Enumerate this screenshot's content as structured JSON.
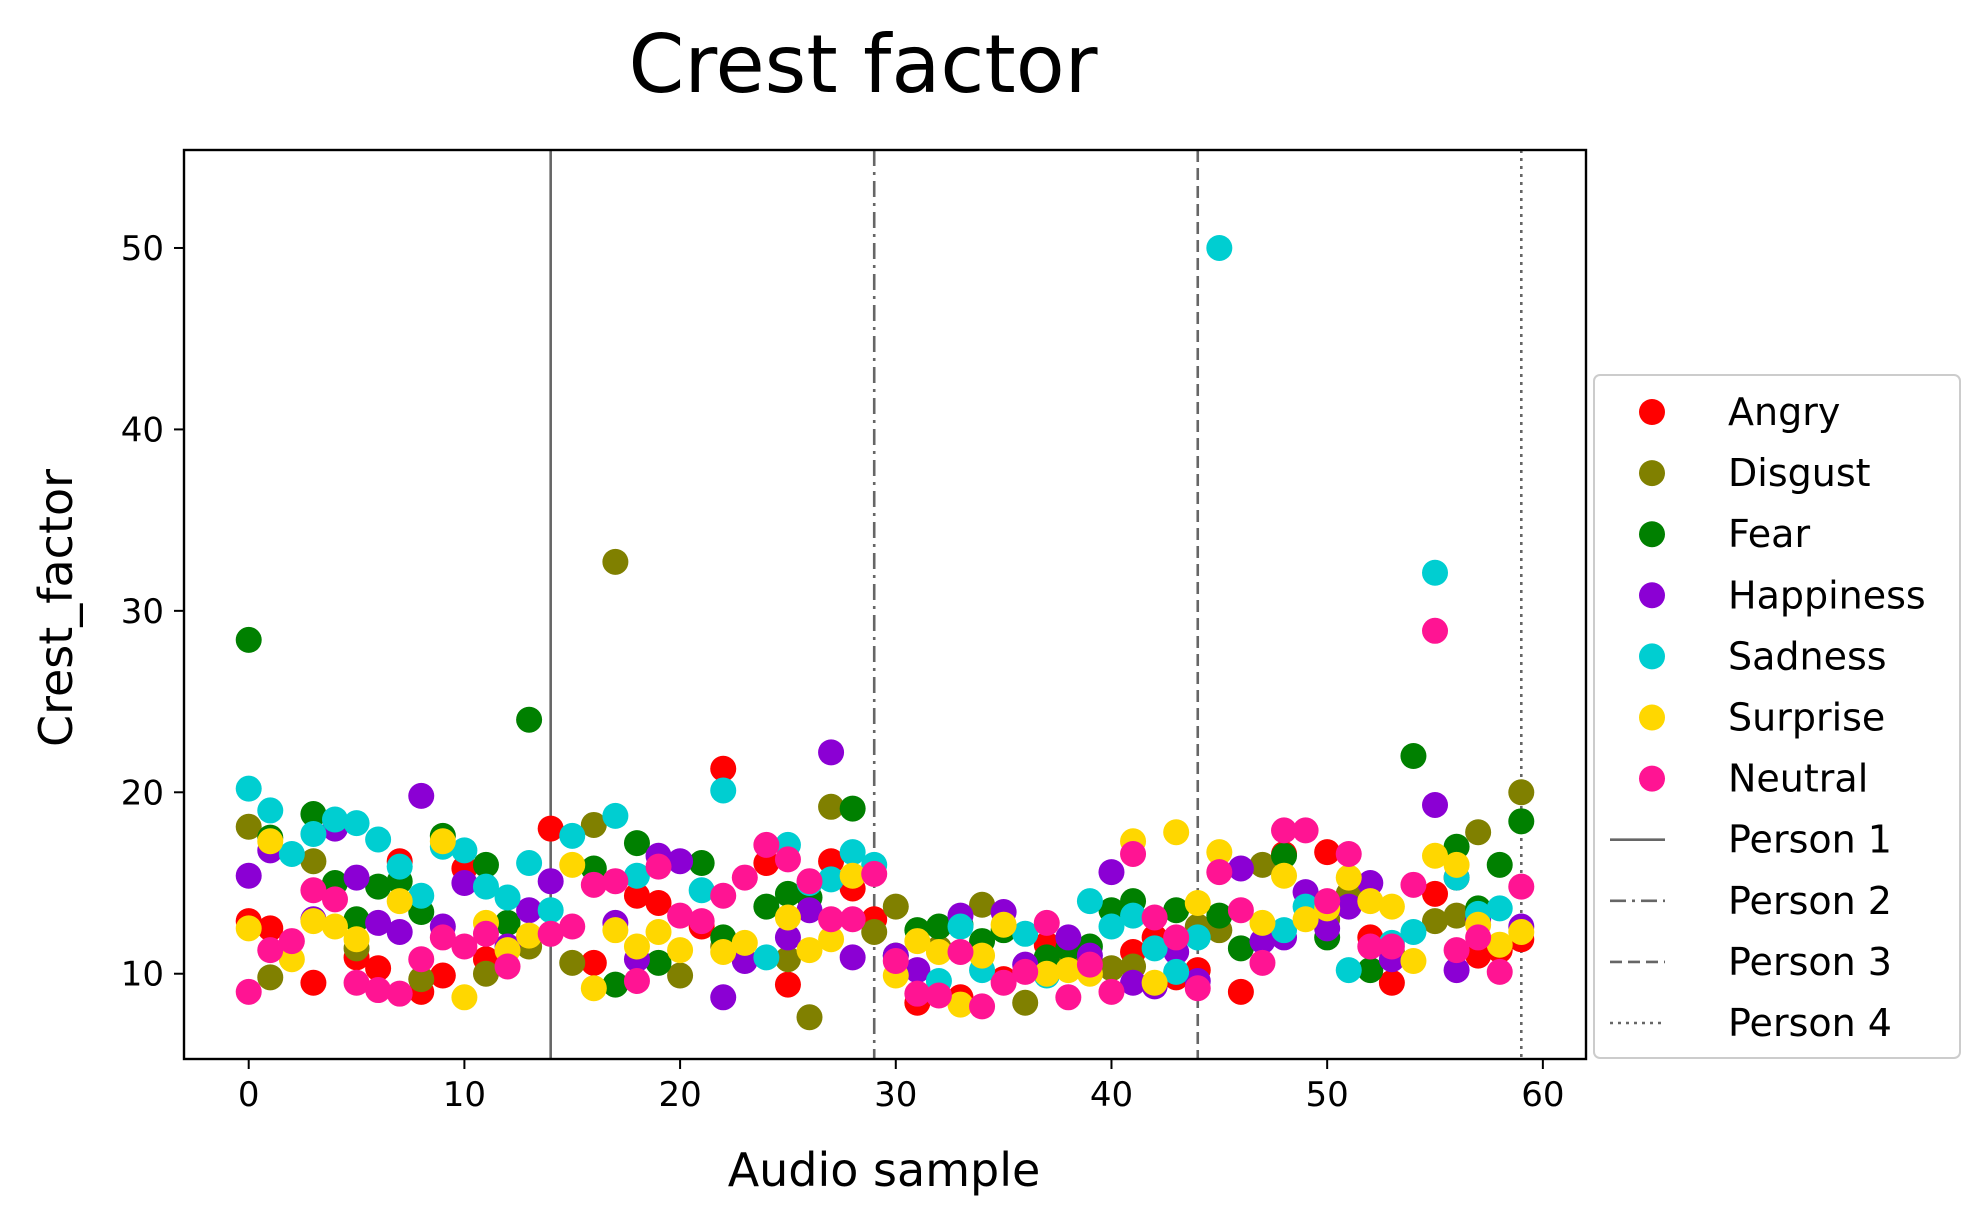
{
  "chart_data": {
    "type": "scatter",
    "title": "Crest factor",
    "xlabel": "Audio sample",
    "ylabel": "Crest_factor",
    "xlim": [
      -3,
      62
    ],
    "ylim": [
      5.3,
      55.4
    ],
    "xticks": [
      0,
      10,
      20,
      30,
      40,
      50,
      60
    ],
    "yticks": [
      10,
      20,
      30,
      40,
      50
    ],
    "grid": false,
    "legend_position": "outside-right",
    "series": [
      {
        "name": "Angry",
        "color": "#ff0000",
        "x": [
          0,
          1,
          3,
          5,
          6,
          7,
          8,
          9,
          10,
          11,
          13,
          14,
          16,
          18,
          19,
          21,
          22,
          24,
          25,
          27,
          28,
          29,
          31,
          33,
          35,
          37,
          39,
          41,
          42,
          43,
          44,
          46,
          48,
          50,
          52,
          53,
          55,
          56,
          57,
          58,
          59
        ],
        "y": [
          12.9,
          12.5,
          9.5,
          10.9,
          10.3,
          16.2,
          9.0,
          9.9,
          15.8,
          10.8,
          12.0,
          18.0,
          10.6,
          14.3,
          13.9,
          12.6,
          21.3,
          16.1,
          9.4,
          16.2,
          14.7,
          13.0,
          8.4,
          8.7,
          9.7,
          11.6,
          10.7,
          11.2,
          12.0,
          9.8,
          10.2,
          9.0,
          16.6,
          16.7,
          12.0,
          9.5,
          14.4,
          15.3,
          11.0,
          11.3,
          11.9
        ]
      },
      {
        "name": "Disgust",
        "color": "#808000",
        "x": [
          0,
          1,
          3,
          5,
          8,
          11,
          13,
          15,
          16,
          17,
          20,
          22,
          25,
          26,
          27,
          29,
          30,
          32,
          34,
          36,
          38,
          40,
          41,
          44,
          45,
          47,
          50,
          51,
          53,
          55,
          56,
          57,
          59
        ],
        "y": [
          18.1,
          9.8,
          16.2,
          11.4,
          9.7,
          10.0,
          11.5,
          10.6,
          18.2,
          32.7,
          9.9,
          11.5,
          10.8,
          7.6,
          19.2,
          12.3,
          13.7,
          11.4,
          13.8,
          8.4,
          10.9,
          10.3,
          10.4,
          12.6,
          12.4,
          16.0,
          13.0,
          14.4,
          11.2,
          12.9,
          13.2,
          17.8,
          20.0
        ]
      },
      {
        "name": "Fear",
        "color": "#008000",
        "x": [
          0,
          1,
          3,
          4,
          5,
          6,
          7,
          8,
          9,
          11,
          12,
          13,
          16,
          17,
          18,
          19,
          21,
          22,
          24,
          25,
          26,
          28,
          30,
          31,
          32,
          33,
          34,
          35,
          37,
          38,
          39,
          40,
          41,
          43,
          45,
          46,
          48,
          50,
          52,
          54,
          56,
          57,
          58,
          59
        ],
        "y": [
          28.4,
          17.5,
          18.8,
          15.0,
          13.0,
          14.8,
          15.1,
          13.4,
          17.6,
          16.0,
          12.8,
          24.0,
          15.8,
          9.4,
          17.2,
          10.6,
          16.1,
          12.0,
          13.7,
          14.4,
          14.2,
          19.1,
          11.0,
          12.4,
          12.6,
          12.7,
          11.8,
          12.4,
          10.9,
          11.4,
          11.5,
          13.5,
          14.0,
          13.5,
          13.2,
          11.4,
          16.5,
          12.0,
          10.2,
          22.0,
          17.0,
          13.6,
          16.0,
          18.4
        ]
      },
      {
        "name": "Happiness",
        "color": "#8b00d4",
        "x": [
          0,
          1,
          3,
          4,
          5,
          6,
          7,
          8,
          9,
          10,
          12,
          13,
          14,
          17,
          18,
          19,
          20,
          22,
          23,
          25,
          26,
          27,
          28,
          30,
          31,
          33,
          35,
          36,
          38,
          39,
          40,
          41,
          42,
          43,
          44,
          46,
          47,
          48,
          49,
          50,
          51,
          52,
          53,
          55,
          56,
          57,
          59
        ],
        "y": [
          15.4,
          16.8,
          13.0,
          18.0,
          15.3,
          12.8,
          12.3,
          19.8,
          12.6,
          15.0,
          11.5,
          13.5,
          15.1,
          12.8,
          10.8,
          16.5,
          16.2,
          8.7,
          10.7,
          12.0,
          13.5,
          22.2,
          10.9,
          11.0,
          10.2,
          13.2,
          13.4,
          10.5,
          12.0,
          11.0,
          15.6,
          9.5,
          9.3,
          11.2,
          9.6,
          15.8,
          11.8,
          12.0,
          14.5,
          12.5,
          13.7,
          15.0,
          10.8,
          19.3,
          10.2,
          13.0,
          12.6
        ]
      },
      {
        "name": "Sadness",
        "color": "#00ced1",
        "x": [
          0,
          1,
          2,
          3,
          4,
          5,
          6,
          7,
          8,
          9,
          10,
          11,
          12,
          13,
          14,
          15,
          17,
          18,
          21,
          22,
          24,
          25,
          26,
          27,
          28,
          29,
          32,
          33,
          34,
          36,
          37,
          39,
          40,
          41,
          42,
          43,
          44,
          45,
          48,
          49,
          51,
          53,
          54,
          55,
          56,
          57,
          58
        ],
        "y": [
          20.2,
          19.0,
          16.6,
          17.7,
          18.5,
          18.3,
          17.4,
          15.9,
          14.3,
          17.0,
          16.8,
          14.8,
          14.2,
          16.1,
          13.5,
          17.6,
          18.7,
          15.4,
          14.6,
          20.1,
          10.9,
          17.1,
          15.0,
          15.2,
          16.7,
          16.0,
          9.6,
          12.6,
          10.2,
          12.2,
          9.9,
          14.0,
          12.6,
          13.2,
          11.4,
          10.1,
          12.0,
          50.0,
          12.4,
          13.7,
          10.2,
          11.7,
          12.3,
          32.1,
          15.3,
          13.3,
          13.6
        ]
      },
      {
        "name": "Surprise",
        "color": "#ffd700",
        "x": [
          0,
          1,
          2,
          3,
          4,
          5,
          7,
          9,
          10,
          11,
          12,
          13,
          15,
          16,
          17,
          18,
          19,
          20,
          22,
          23,
          25,
          26,
          27,
          28,
          30,
          31,
          32,
          33,
          34,
          35,
          37,
          38,
          39,
          41,
          42,
          43,
          44,
          45,
          47,
          48,
          49,
          50,
          51,
          52,
          53,
          54,
          55,
          56,
          57,
          58,
          59
        ],
        "y": [
          12.5,
          17.3,
          10.8,
          12.9,
          12.6,
          11.9,
          14.0,
          17.3,
          8.7,
          12.8,
          11.3,
          12.1,
          16.0,
          9.2,
          12.4,
          11.5,
          12.3,
          11.3,
          11.2,
          11.7,
          13.1,
          11.3,
          11.9,
          15.4,
          9.9,
          11.8,
          11.2,
          8.3,
          11.0,
          12.7,
          10.0,
          10.2,
          10.0,
          17.3,
          9.5,
          17.8,
          13.9,
          16.7,
          12.8,
          15.4,
          13.0,
          13.6,
          15.3,
          14.0,
          13.7,
          10.7,
          16.5,
          16.0,
          12.7,
          11.6,
          12.3
        ]
      },
      {
        "name": "Neutral",
        "color": "#ff1493",
        "x": [
          0,
          1,
          2,
          3,
          4,
          5,
          6,
          7,
          8,
          9,
          10,
          11,
          12,
          14,
          15,
          16,
          17,
          18,
          19,
          20,
          21,
          22,
          23,
          24,
          25,
          26,
          27,
          28,
          29,
          30,
          31,
          32,
          33,
          34,
          35,
          36,
          37,
          38,
          39,
          40,
          41,
          42,
          43,
          44,
          45,
          46,
          47,
          48,
          49,
          50,
          51,
          52,
          53,
          54,
          55,
          56,
          57,
          58,
          59
        ],
        "y": [
          9.0,
          11.3,
          11.8,
          14.6,
          14.1,
          9.5,
          9.1,
          8.9,
          10.8,
          12.0,
          11.5,
          12.2,
          10.4,
          12.2,
          12.6,
          14.9,
          15.1,
          9.6,
          15.9,
          13.2,
          12.9,
          14.3,
          15.3,
          17.1,
          16.3,
          15.1,
          13.0,
          13.0,
          15.5,
          10.7,
          8.9,
          8.8,
          11.2,
          8.2,
          9.5,
          10.1,
          12.8,
          8.7,
          10.5,
          9.0,
          16.6,
          13.1,
          12.0,
          9.2,
          15.6,
          13.5,
          10.6,
          17.9,
          17.9,
          14.0,
          16.6,
          11.5,
          11.5,
          14.9,
          28.9,
          11.3,
          12.0,
          10.1,
          14.8
        ]
      },
      {
        "name": "Person 1",
        "type": "vline",
        "x": 14,
        "dash": "solid"
      },
      {
        "name": "Person 2",
        "type": "vline",
        "x": 29,
        "dash": "dashdot"
      },
      {
        "name": "Person 3",
        "type": "vline",
        "x": 44,
        "dash": "dashed"
      },
      {
        "name": "Person 4",
        "type": "vline",
        "x": 59,
        "dash": "dotted"
      }
    ]
  },
  "colors": {
    "reference_line": "#666666",
    "legend_border": "#cccccc"
  }
}
